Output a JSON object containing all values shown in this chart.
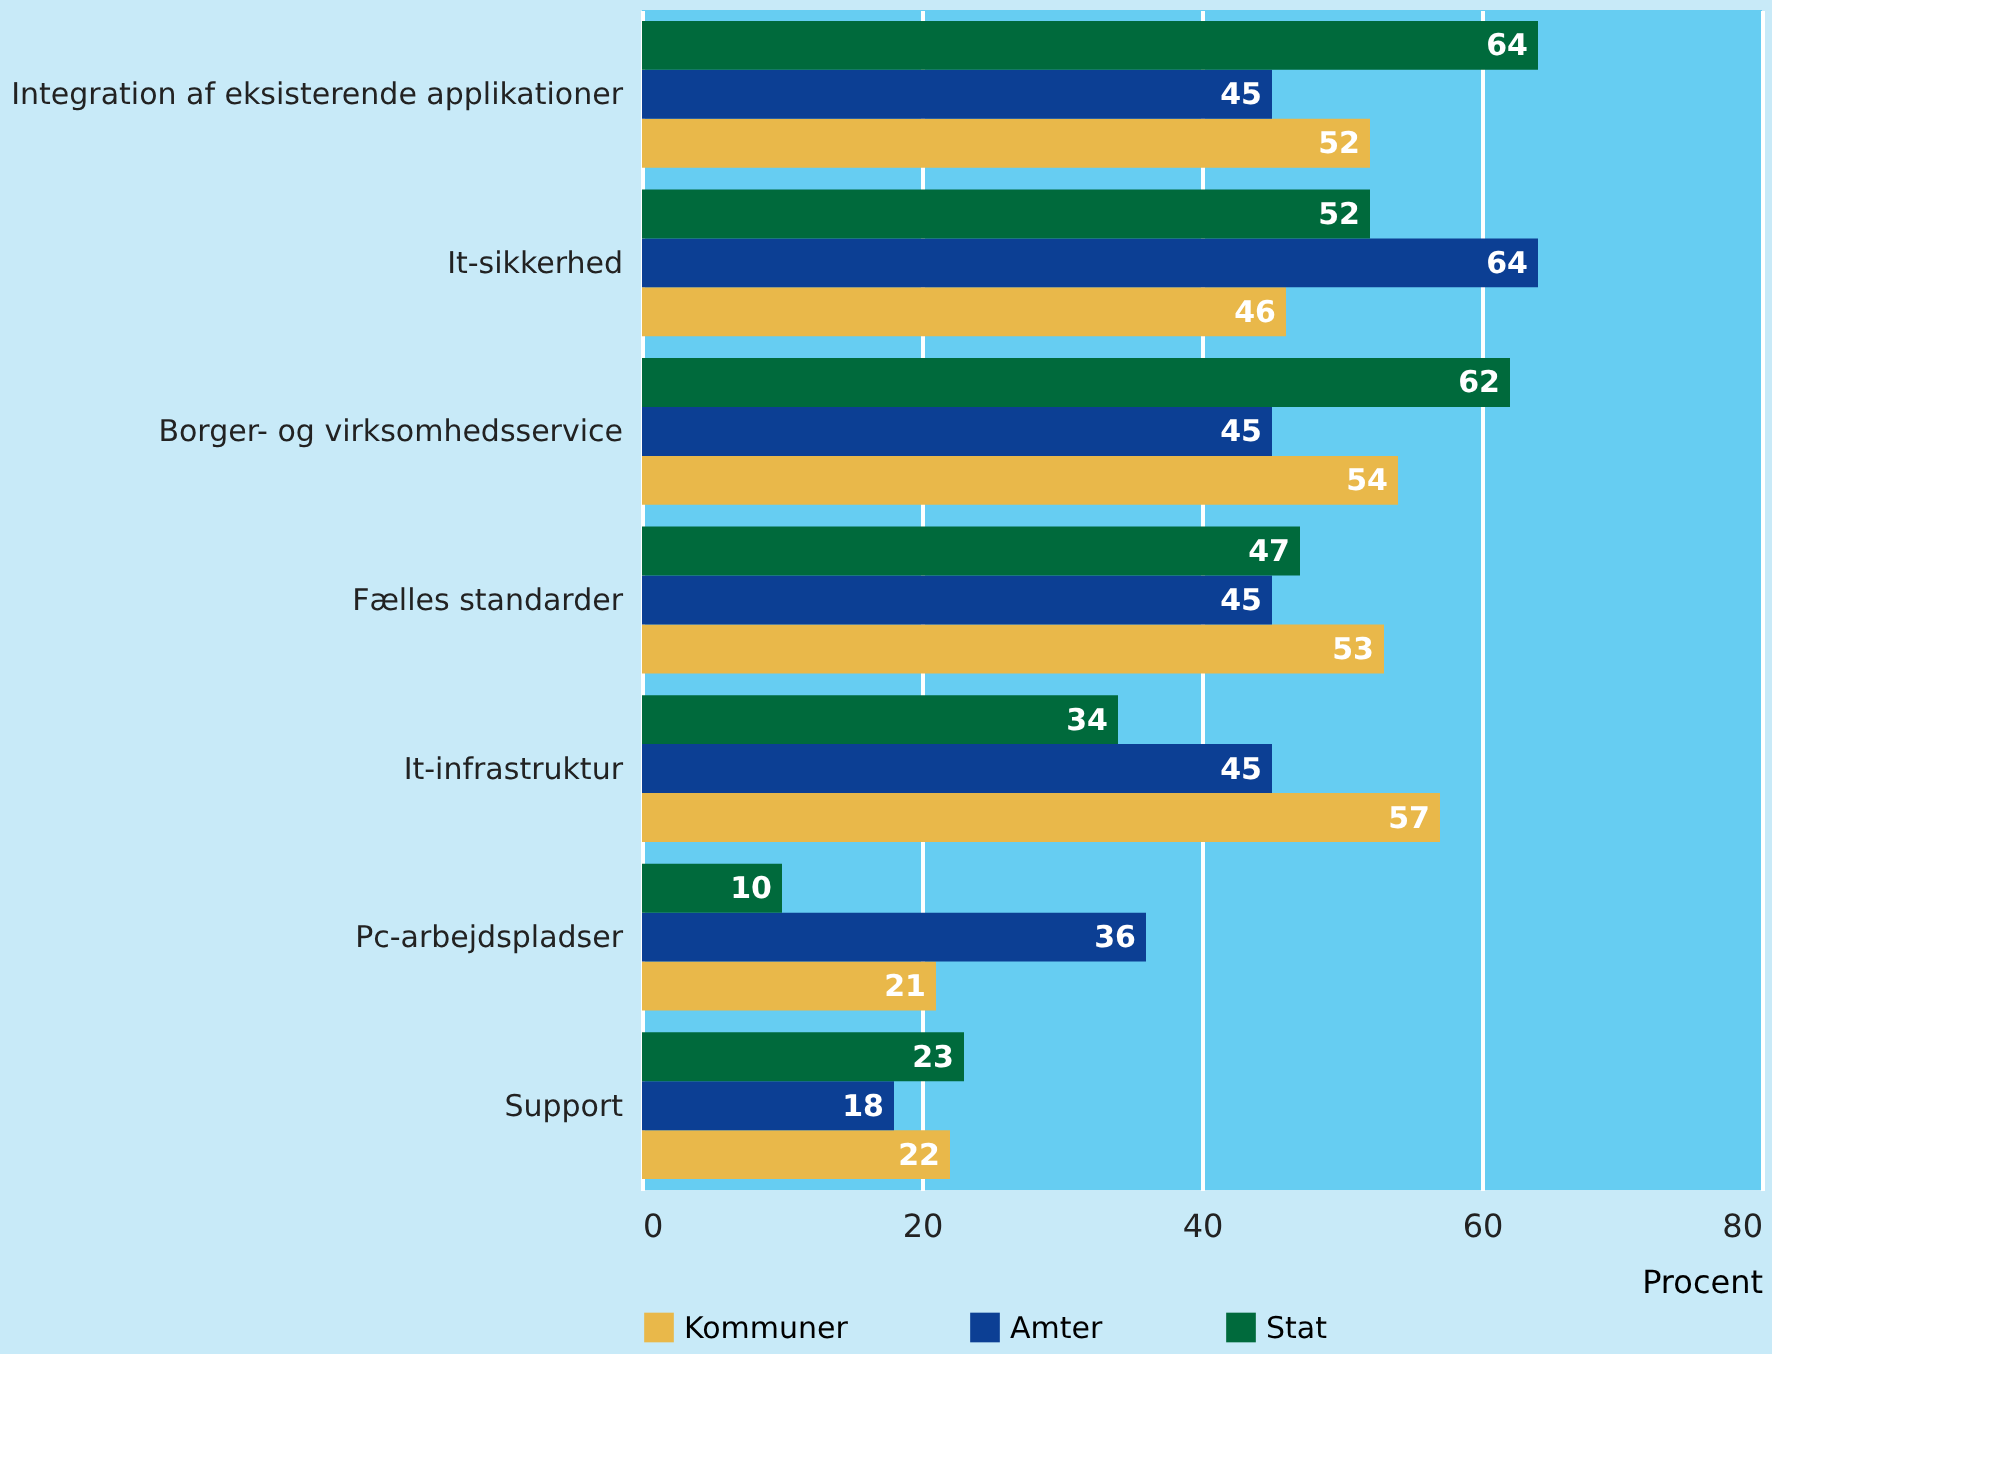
{
  "chart_data": {
    "type": "bar",
    "orientation": "horizontal",
    "xlabel": "Procent",
    "categories": [
      "Integration af eksisterende applikationer",
      "It-sikkerhed",
      "Borger- og virksomhedsservice",
      "Fælles standarder",
      "It-infrastruktur",
      "Pc-arbejdspladser",
      "Support"
    ],
    "series": [
      {
        "name": "Kommuner",
        "color": "#e9b84a",
        "values": [
          52,
          46,
          54,
          53,
          57,
          21,
          22
        ]
      },
      {
        "name": "Amter",
        "color": "#0c3f94",
        "values": [
          45,
          64,
          45,
          45,
          45,
          36,
          18
        ]
      },
      {
        "name": "Stat",
        "color": "#006a3c",
        "values": [
          64,
          52,
          62,
          47,
          34,
          10,
          23
        ]
      }
    ],
    "xlim": [
      0,
      80
    ],
    "xticks": [
      0,
      20,
      40,
      60,
      80
    ],
    "grid": "x",
    "legend": "bottom",
    "data_labels": true
  }
}
